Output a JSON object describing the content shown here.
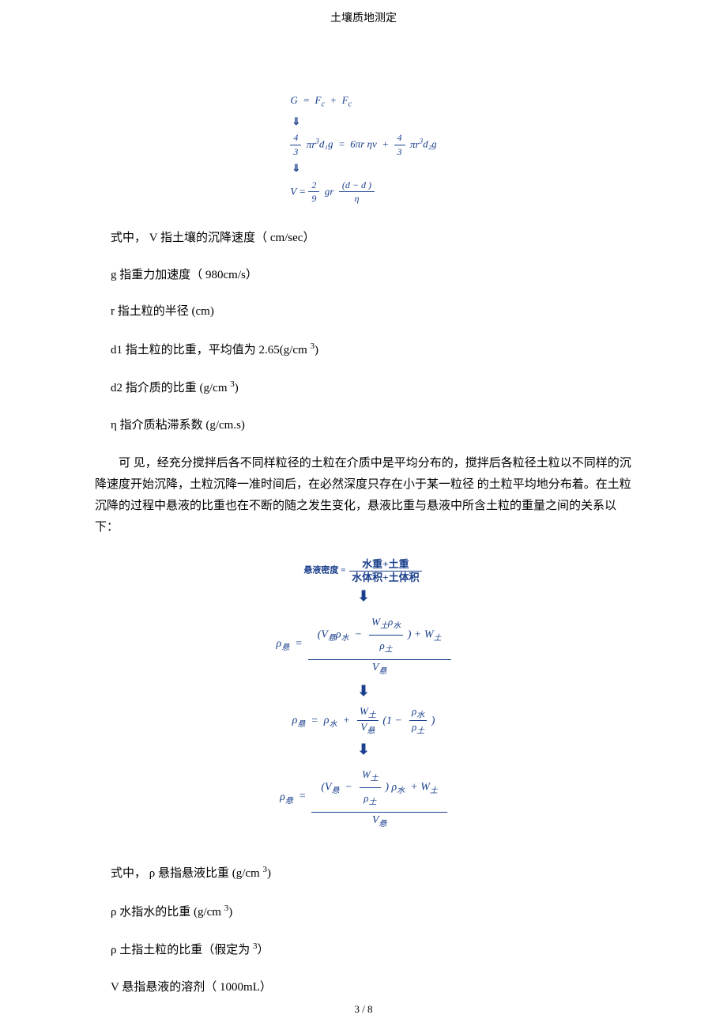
{
  "header": {
    "title": "土壤质地测定"
  },
  "formula1": {
    "line1_lhs": "G",
    "line1_rhs_a": "F",
    "line1_rhs_b": "F",
    "frac4": "4",
    "frac3": "3",
    "pi_r3": "πr",
    "d1": "d₁",
    "g_sym": "g",
    "six_pi": "6πr ηv",
    "d2": "d₂",
    "v_eq": "V",
    "frac2": "2",
    "frac9": "9",
    "gr_sq": "gr",
    "num_dd": "(d  − d  )",
    "den_eta": "η",
    "color": "#1a3f8c"
  },
  "defs1": {
    "d1": "式中， V 指土壤的沉降速度（ cm/sec）",
    "d2": "g 指重力加速度（ 980cm/s）",
    "d3": "r 指土粒的半径 (cm)",
    "d4_a": "d1 指土粒的比重，平均值为   2.65(g/cm ",
    "d4_b": ")",
    "d5_a": "d2 指介质的比重 (g/cm ",
    "d5_b": ")",
    "d6": "η 指介质粘滞系数 (g/cm.s)",
    "sup3": "3"
  },
  "para": {
    "text": "可 见，经充分搅拌后各不同样粒径的土粒在介质中是平均分布的，搅拌后各粒径土粒以不同样的沉降速度开始沉降，土粒沉降一准时间后，在必然深度只存在小于某一粒径 的土粒平均地分布着。在土粒沉降的过程中悬液的比重也在不断的随之发生变化，悬液比重与悬液中所含土粒的重量之间的关系以下："
  },
  "formula2": {
    "header_lhs": "悬液密度",
    "header_num": "水重+土重",
    "header_den": "水体积+土体积",
    "rho_x": "ρ",
    "sub_xuan": "悬",
    "sub_shui": "水",
    "sub_tu": "土",
    "V": "V",
    "W": "W",
    "eq": "=",
    "plus": "+",
    "minus": "−",
    "one": "1",
    "lparen": "(",
    "rparen": ")"
  },
  "defs2": {
    "d1_a": "式中， ρ  悬指悬液比重 (g/cm ",
    "d1_b": ")",
    "d2_a": "ρ 水指水的比重 (g/cm ",
    "d2_b": ")",
    "d3_a": "ρ 土指土粒的比重（假定为   ",
    "d3_b": "）",
    "d4": "V 悬指悬液的溶剂（ 1000mL）",
    "sup3": "3"
  },
  "footer": {
    "page": "3 / 8"
  }
}
